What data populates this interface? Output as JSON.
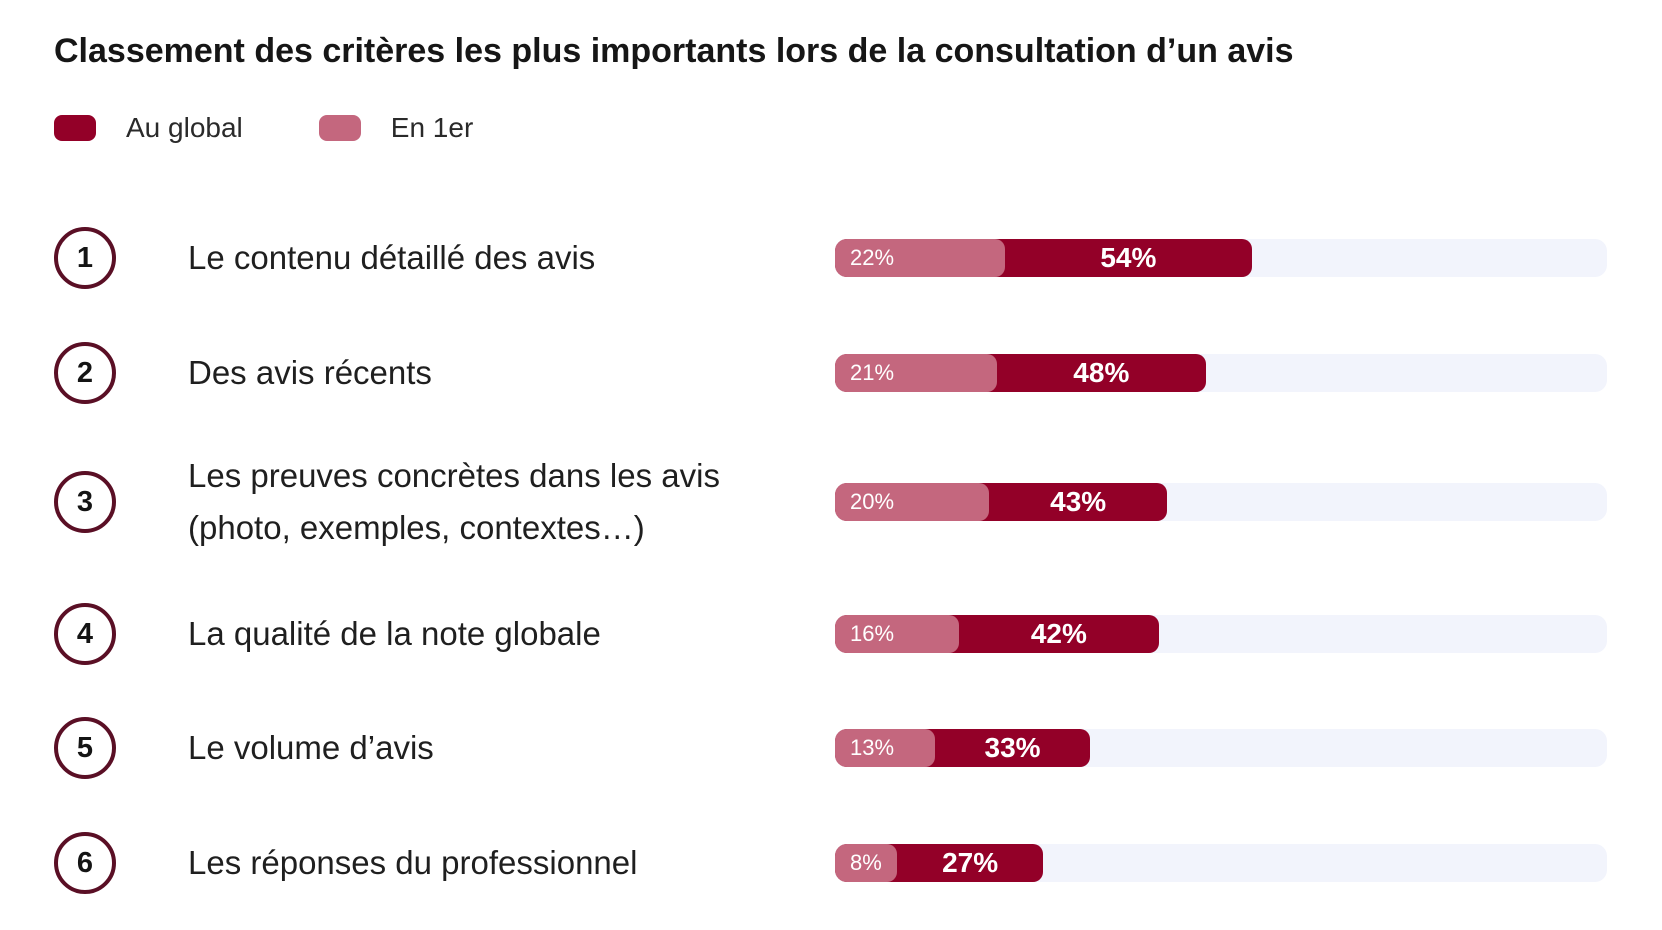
{
  "title": "Classement des critères les plus importants lors de la consultation d’un avis",
  "legend": [
    {
      "label": "Au global",
      "color": "#930028"
    },
    {
      "label": "En 1er",
      "color": "#c4677e"
    }
  ],
  "colors": {
    "global": "#930028",
    "first": "#c4677e",
    "track": "#f2f4fc",
    "ring": "#5a0f25"
  },
  "rows": [
    {
      "rank": "1",
      "label": "Le contenu détaillé des avis",
      "first_text": "22%",
      "global_text": "54%"
    },
    {
      "rank": "2",
      "label": "Des avis récents",
      "first_text": "21%",
      "global_text": "48%"
    },
    {
      "rank": "3",
      "label": "Les preuves concrètes dans les avis (photo, exemples, contextes…)",
      "first_text": "20%",
      "global_text": "43%"
    },
    {
      "rank": "4",
      "label": "La qualité de la note globale",
      "first_text": "16%",
      "global_text": "42%"
    },
    {
      "rank": "5",
      "label": "Le volume d’avis",
      "first_text": "13%",
      "global_text": "33%"
    },
    {
      "rank": "6",
      "label": "Les réponses du professionnel",
      "first_text": "8%",
      "global_text": "27%"
    }
  ],
  "chart_data": {
    "type": "bar",
    "orientation": "horizontal",
    "title": "Classement des critères les plus importants lors de la consultation d’un avis",
    "categories": [
      "Le contenu détaillé des avis",
      "Des avis récents",
      "Les preuves concrètes dans les avis (photo, exemples, contextes…)",
      "La qualité de la note globale",
      "Le volume d’avis",
      "Les réponses du professionnel"
    ],
    "series": [
      {
        "name": "Au global",
        "values": [
          54,
          48,
          43,
          42,
          33,
          27
        ]
      },
      {
        "name": "En 1er",
        "values": [
          22,
          21,
          20,
          16,
          13,
          8
        ]
      }
    ],
    "xlim": [
      0,
      100
    ],
    "legend": "top-left",
    "grid": false
  }
}
